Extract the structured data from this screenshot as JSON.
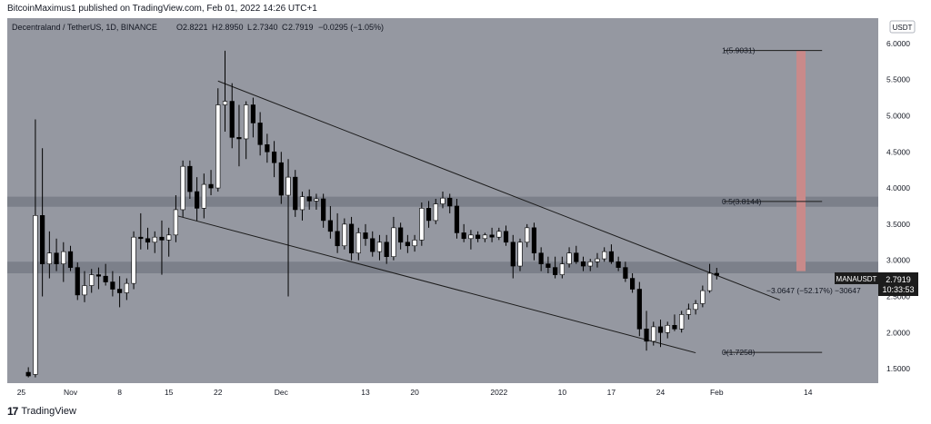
{
  "header": {
    "author": "BitcoinMaximus1",
    "published_text": "published on TradingView.com, Feb 01, 2022 14:26 UTC+1"
  },
  "symbol_bar": {
    "symbol": "Decentraland / TetherUS, 1D, BINANCE",
    "o_label": "O",
    "o": "2.8221",
    "h_label": "H",
    "h": "2.8950",
    "l_label": "L",
    "l": "2.7340",
    "c_label": "C",
    "c": "2.7919",
    "change": "−0.0295 (−1.05%)"
  },
  "currency_badge": "USDT",
  "price_tag": {
    "ticker": "MANAUSDT",
    "price": "2.7919",
    "countdown": "10:33:53"
  },
  "annotations": {
    "fib_top": "1(5.9031)",
    "fib_mid": "0.5(3.8144)",
    "fib_bottom": "0(1.7258)",
    "measure": "−3.0647 (−52.17%) −30647"
  },
  "footer": {
    "logo": "17",
    "brand": "TradingView"
  },
  "colors": {
    "background": "#9598a1",
    "candle_up": "#ffffff",
    "candle_down": "#000000",
    "zone": "#787b86",
    "target_bar": "#c98a8a",
    "line": "#1c1c1c"
  },
  "chart_data": {
    "type": "candlestick",
    "pair": "MANA/USDT",
    "timeframe": "1D",
    "ylim": [
      1.3,
      6.35
    ],
    "y_ticks": [
      "6.0000",
      "5.5000",
      "5.0000",
      "4.5000",
      "4.0000",
      "3.5000",
      "3.0000",
      "2.5000",
      "2.0000",
      "1.5000"
    ],
    "x_ticks": [
      {
        "label": "25",
        "day": -1
      },
      {
        "label": "Nov",
        "day": 6
      },
      {
        "label": "8",
        "day": 13
      },
      {
        "label": "15",
        "day": 20
      },
      {
        "label": "22",
        "day": 27
      },
      {
        "label": "Dec",
        "day": 36
      },
      {
        "label": "13",
        "day": 48
      },
      {
        "label": "20",
        "day": 55
      },
      {
        "label": "2022",
        "day": 67
      },
      {
        "label": "10",
        "day": 76
      },
      {
        "label": "17",
        "day": 83
      },
      {
        "label": "24",
        "day": 90
      },
      {
        "label": "Feb",
        "day": 98
      },
      {
        "label": "14",
        "day": 111
      }
    ],
    "candles": [
      {
        "day": 0,
        "o": 1.45,
        "h": 1.52,
        "l": 1.38,
        "c": 1.4
      },
      {
        "day": 1,
        "o": 1.42,
        "h": 4.95,
        "l": 1.38,
        "c": 3.62
      },
      {
        "day": 2,
        "o": 3.62,
        "h": 4.55,
        "l": 2.5,
        "c": 2.95
      },
      {
        "day": 3,
        "o": 2.95,
        "h": 3.4,
        "l": 2.75,
        "c": 3.1
      },
      {
        "day": 4,
        "o": 3.1,
        "h": 3.3,
        "l": 2.85,
        "c": 2.95
      },
      {
        "day": 5,
        "o": 2.95,
        "h": 3.25,
        "l": 2.7,
        "c": 3.12
      },
      {
        "day": 6,
        "o": 3.12,
        "h": 3.2,
        "l": 2.85,
        "c": 2.9
      },
      {
        "day": 7,
        "o": 2.9,
        "h": 2.97,
        "l": 2.45,
        "c": 2.52
      },
      {
        "day": 8,
        "o": 2.52,
        "h": 2.85,
        "l": 2.42,
        "c": 2.65
      },
      {
        "day": 9,
        "o": 2.65,
        "h": 2.88,
        "l": 2.55,
        "c": 2.8
      },
      {
        "day": 10,
        "o": 2.8,
        "h": 2.9,
        "l": 2.6,
        "c": 2.78
      },
      {
        "day": 11,
        "o": 2.78,
        "h": 2.95,
        "l": 2.65,
        "c": 2.7
      },
      {
        "day": 12,
        "o": 2.7,
        "h": 2.85,
        "l": 2.5,
        "c": 2.6
      },
      {
        "day": 13,
        "o": 2.6,
        "h": 2.78,
        "l": 2.35,
        "c": 2.55
      },
      {
        "day": 14,
        "o": 2.55,
        "h": 2.75,
        "l": 2.45,
        "c": 2.68
      },
      {
        "day": 15,
        "o": 2.68,
        "h": 3.4,
        "l": 2.6,
        "c": 3.32
      },
      {
        "day": 16,
        "o": 3.32,
        "h": 3.65,
        "l": 3.15,
        "c": 3.3
      },
      {
        "day": 17,
        "o": 3.3,
        "h": 3.45,
        "l": 3.15,
        "c": 3.25
      },
      {
        "day": 18,
        "o": 3.25,
        "h": 3.4,
        "l": 3.1,
        "c": 3.32
      },
      {
        "day": 19,
        "o": 3.32,
        "h": 3.55,
        "l": 2.8,
        "c": 3.28
      },
      {
        "day": 20,
        "o": 3.28,
        "h": 3.45,
        "l": 3.05,
        "c": 3.35
      },
      {
        "day": 21,
        "o": 3.35,
        "h": 3.9,
        "l": 3.25,
        "c": 3.7
      },
      {
        "day": 22,
        "o": 3.7,
        "h": 4.38,
        "l": 3.6,
        "c": 4.3
      },
      {
        "day": 23,
        "o": 4.3,
        "h": 4.38,
        "l": 3.85,
        "c": 3.95
      },
      {
        "day": 24,
        "o": 3.95,
        "h": 4.15,
        "l": 3.55,
        "c": 3.72
      },
      {
        "day": 25,
        "o": 3.72,
        "h": 4.2,
        "l": 3.58,
        "c": 4.05
      },
      {
        "day": 26,
        "o": 4.05,
        "h": 4.25,
        "l": 3.9,
        "c": 4.0
      },
      {
        "day": 27,
        "o": 4.0,
        "h": 5.38,
        "l": 3.95,
        "c": 5.15
      },
      {
        "day": 28,
        "o": 5.15,
        "h": 5.9,
        "l": 4.78,
        "c": 5.2
      },
      {
        "day": 29,
        "o": 5.2,
        "h": 5.45,
        "l": 4.55,
        "c": 4.7
      },
      {
        "day": 30,
        "o": 4.7,
        "h": 5.15,
        "l": 4.3,
        "c": 4.68
      },
      {
        "day": 31,
        "o": 4.68,
        "h": 5.2,
        "l": 4.4,
        "c": 5.15
      },
      {
        "day": 32,
        "o": 5.15,
        "h": 5.25,
        "l": 4.7,
        "c": 4.9
      },
      {
        "day": 33,
        "o": 4.9,
        "h": 5.05,
        "l": 4.45,
        "c": 4.6
      },
      {
        "day": 34,
        "o": 4.6,
        "h": 4.75,
        "l": 4.35,
        "c": 4.5
      },
      {
        "day": 35,
        "o": 4.5,
        "h": 4.65,
        "l": 4.15,
        "c": 4.35
      },
      {
        "day": 36,
        "o": 4.35,
        "h": 4.5,
        "l": 3.78,
        "c": 3.9
      },
      {
        "day": 37,
        "o": 3.9,
        "h": 4.4,
        "l": 2.5,
        "c": 4.15
      },
      {
        "day": 38,
        "o": 4.15,
        "h": 4.25,
        "l": 3.6,
        "c": 3.7
      },
      {
        "day": 39,
        "o": 3.7,
        "h": 3.95,
        "l": 3.55,
        "c": 3.88
      },
      {
        "day": 40,
        "o": 3.88,
        "h": 3.98,
        "l": 3.7,
        "c": 3.82
      },
      {
        "day": 41,
        "o": 3.82,
        "h": 3.92,
        "l": 3.7,
        "c": 3.85
      },
      {
        "day": 42,
        "o": 3.85,
        "h": 3.92,
        "l": 3.45,
        "c": 3.55
      },
      {
        "day": 43,
        "o": 3.55,
        "h": 3.75,
        "l": 3.3,
        "c": 3.4
      },
      {
        "day": 44,
        "o": 3.4,
        "h": 3.65,
        "l": 3.1,
        "c": 3.2
      },
      {
        "day": 45,
        "o": 3.2,
        "h": 3.58,
        "l": 3.15,
        "c": 3.5
      },
      {
        "day": 46,
        "o": 3.5,
        "h": 3.6,
        "l": 3.0,
        "c": 3.1
      },
      {
        "day": 47,
        "o": 3.1,
        "h": 3.45,
        "l": 3.0,
        "c": 3.38
      },
      {
        "day": 48,
        "o": 3.38,
        "h": 3.5,
        "l": 3.2,
        "c": 3.3
      },
      {
        "day": 49,
        "o": 3.3,
        "h": 3.4,
        "l": 3.05,
        "c": 3.12
      },
      {
        "day": 50,
        "o": 3.12,
        "h": 3.35,
        "l": 3.0,
        "c": 3.25
      },
      {
        "day": 51,
        "o": 3.25,
        "h": 3.35,
        "l": 2.95,
        "c": 3.05
      },
      {
        "day": 52,
        "o": 3.05,
        "h": 3.6,
        "l": 3.0,
        "c": 3.45
      },
      {
        "day": 53,
        "o": 3.45,
        "h": 3.52,
        "l": 3.15,
        "c": 3.25
      },
      {
        "day": 54,
        "o": 3.25,
        "h": 3.35,
        "l": 3.1,
        "c": 3.2
      },
      {
        "day": 55,
        "o": 3.2,
        "h": 3.35,
        "l": 3.12,
        "c": 3.28
      },
      {
        "day": 56,
        "o": 3.28,
        "h": 3.8,
        "l": 3.2,
        "c": 3.72
      },
      {
        "day": 57,
        "o": 3.72,
        "h": 3.82,
        "l": 3.45,
        "c": 3.55
      },
      {
        "day": 58,
        "o": 3.55,
        "h": 3.85,
        "l": 3.5,
        "c": 3.78
      },
      {
        "day": 59,
        "o": 3.78,
        "h": 3.95,
        "l": 3.72,
        "c": 3.86
      },
      {
        "day": 60,
        "o": 3.86,
        "h": 3.92,
        "l": 3.65,
        "c": 3.75
      },
      {
        "day": 61,
        "o": 3.75,
        "h": 3.85,
        "l": 3.3,
        "c": 3.38
      },
      {
        "day": 62,
        "o": 3.38,
        "h": 3.5,
        "l": 3.25,
        "c": 3.3
      },
      {
        "day": 63,
        "o": 3.3,
        "h": 3.42,
        "l": 3.15,
        "c": 3.35
      },
      {
        "day": 64,
        "o": 3.35,
        "h": 3.4,
        "l": 3.25,
        "c": 3.3
      },
      {
        "day": 65,
        "o": 3.3,
        "h": 3.38,
        "l": 3.25,
        "c": 3.35
      },
      {
        "day": 66,
        "o": 3.35,
        "h": 3.45,
        "l": 3.25,
        "c": 3.32
      },
      {
        "day": 67,
        "o": 3.32,
        "h": 3.45,
        "l": 3.28,
        "c": 3.4
      },
      {
        "day": 68,
        "o": 3.4,
        "h": 3.48,
        "l": 3.2,
        "c": 3.25
      },
      {
        "day": 69,
        "o": 3.25,
        "h": 3.35,
        "l": 2.75,
        "c": 2.92
      },
      {
        "day": 70,
        "o": 2.92,
        "h": 3.3,
        "l": 2.85,
        "c": 3.25
      },
      {
        "day": 71,
        "o": 3.25,
        "h": 3.5,
        "l": 3.18,
        "c": 3.45
      },
      {
        "day": 72,
        "o": 3.45,
        "h": 3.52,
        "l": 3.0,
        "c": 3.1
      },
      {
        "day": 73,
        "o": 3.1,
        "h": 3.18,
        "l": 2.85,
        "c": 2.95
      },
      {
        "day": 74,
        "o": 2.95,
        "h": 3.05,
        "l": 2.82,
        "c": 2.9
      },
      {
        "day": 75,
        "o": 2.9,
        "h": 3.05,
        "l": 2.75,
        "c": 2.8
      },
      {
        "day": 76,
        "o": 2.8,
        "h": 3.05,
        "l": 2.75,
        "c": 2.95
      },
      {
        "day": 77,
        "o": 2.95,
        "h": 3.18,
        "l": 2.9,
        "c": 3.1
      },
      {
        "day": 78,
        "o": 3.1,
        "h": 3.2,
        "l": 2.95,
        "c": 2.98
      },
      {
        "day": 79,
        "o": 2.98,
        "h": 3.05,
        "l": 2.85,
        "c": 2.92
      },
      {
        "day": 80,
        "o": 2.92,
        "h": 3.02,
        "l": 2.85,
        "c": 2.98
      },
      {
        "day": 81,
        "o": 2.98,
        "h": 3.1,
        "l": 2.9,
        "c": 3.02
      },
      {
        "day": 82,
        "o": 3.02,
        "h": 3.18,
        "l": 2.98,
        "c": 3.12
      },
      {
        "day": 83,
        "o": 3.12,
        "h": 3.22,
        "l": 2.95,
        "c": 2.98
      },
      {
        "day": 84,
        "o": 2.98,
        "h": 3.05,
        "l": 2.85,
        "c": 2.9
      },
      {
        "day": 85,
        "o": 2.9,
        "h": 2.98,
        "l": 2.7,
        "c": 2.75
      },
      {
        "day": 86,
        "o": 2.75,
        "h": 2.82,
        "l": 2.55,
        "c": 2.6
      },
      {
        "day": 87,
        "o": 2.6,
        "h": 2.7,
        "l": 1.95,
        "c": 2.05
      },
      {
        "day": 88,
        "o": 2.05,
        "h": 2.3,
        "l": 1.75,
        "c": 1.88
      },
      {
        "day": 89,
        "o": 1.88,
        "h": 2.15,
        "l": 1.82,
        "c": 2.08
      },
      {
        "day": 90,
        "o": 2.08,
        "h": 2.18,
        "l": 1.8,
        "c": 2.0
      },
      {
        "day": 91,
        "o": 2.0,
        "h": 2.15,
        "l": 1.92,
        "c": 2.1
      },
      {
        "day": 92,
        "o": 2.1,
        "h": 2.25,
        "l": 2.02,
        "c": 2.05
      },
      {
        "day": 93,
        "o": 2.05,
        "h": 2.3,
        "l": 2.0,
        "c": 2.25
      },
      {
        "day": 94,
        "o": 2.25,
        "h": 2.4,
        "l": 2.18,
        "c": 2.32
      },
      {
        "day": 95,
        "o": 2.32,
        "h": 2.45,
        "l": 2.25,
        "c": 2.4
      },
      {
        "day": 96,
        "o": 2.4,
        "h": 2.65,
        "l": 2.35,
        "c": 2.58
      },
      {
        "day": 97,
        "o": 2.58,
        "h": 2.95,
        "l": 2.55,
        "c": 2.82
      },
      {
        "day": 98,
        "o": 2.82,
        "h": 2.895,
        "l": 2.734,
        "c": 2.7919
      }
    ],
    "zones": [
      {
        "from": 2.82,
        "to": 2.98
      },
      {
        "from": 3.74,
        "to": 3.88
      }
    ],
    "fib_levels": [
      {
        "value": 5.9031,
        "label_key": "fib_top"
      },
      {
        "value": 3.8144,
        "label_key": "fib_mid"
      },
      {
        "value": 1.7258,
        "label_key": "fib_bottom"
      }
    ],
    "trendlines": [
      {
        "name": "upper",
        "from": {
          "day": 27,
          "price": 5.48
        },
        "to": {
          "day": 107,
          "price": 2.45
        }
      },
      {
        "name": "lower",
        "from": {
          "day": 21,
          "price": 3.62
        },
        "to": {
          "day": 95,
          "price": 1.72
        }
      }
    ],
    "target_bar": {
      "day": 110,
      "from": 2.85,
      "to": 5.9
    },
    "last_price": 2.7919
  }
}
